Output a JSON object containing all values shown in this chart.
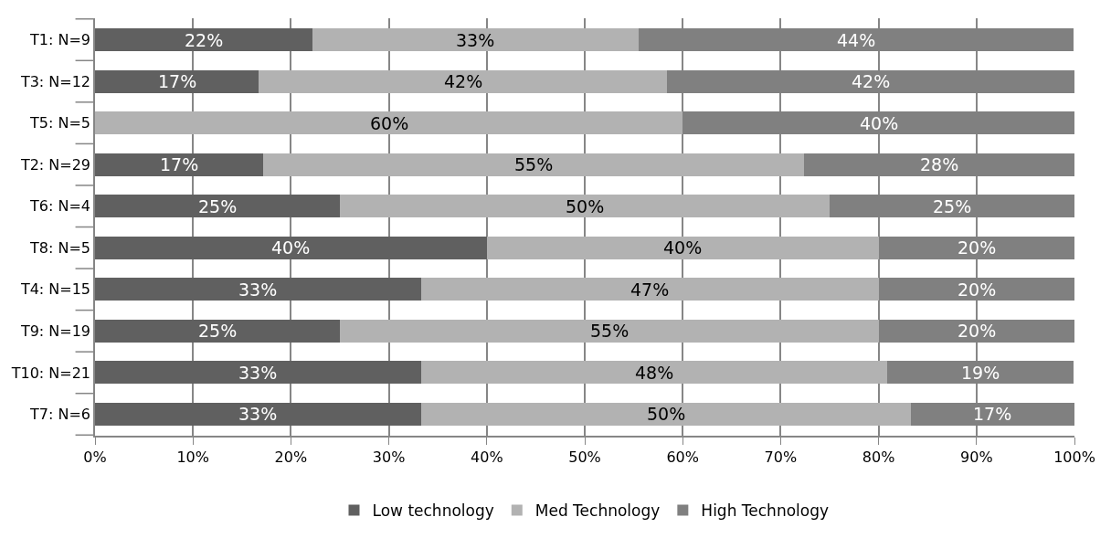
{
  "chart_data": {
    "type": "bar",
    "orientation": "horizontal",
    "stacked": true,
    "categories": [
      "T1: N=9",
      "T3: N=12",
      "T5: N=5",
      "T2: N=29",
      "T6: N=4",
      "T8: N=5",
      "T4: N=15",
      "T9: N=19",
      "T10: N=21",
      "T7: N=6"
    ],
    "series": [
      {
        "name": "Low technology",
        "color": "#606060",
        "values": [
          22.2,
          16.7,
          0,
          17.2,
          25,
          40,
          33.3,
          25,
          33.3,
          33.3
        ],
        "value_labels": [
          "22%",
          "17%",
          null,
          "17%",
          "25%",
          "40%",
          "33%",
          "25%",
          "33%",
          "33%"
        ]
      },
      {
        "name": "Med Technology",
        "color": "#b2b2b2",
        "values": [
          33.3,
          41.7,
          60,
          55.2,
          50,
          40,
          46.7,
          55,
          47.6,
          50
        ],
        "value_labels": [
          "33%",
          "42%",
          "60%",
          "55%",
          "50%",
          "40%",
          "47%",
          "55%",
          "48%",
          "50%"
        ]
      },
      {
        "name": "High Technology",
        "color": "#808080",
        "values": [
          44.4,
          41.6,
          40,
          27.6,
          25,
          20,
          20,
          20,
          19.0,
          16.7
        ],
        "value_labels": [
          "44%",
          "42%",
          "40%",
          "28%",
          "25%",
          "20%",
          "20%",
          "20%",
          "19%",
          "17%"
        ]
      }
    ],
    "xlim": [
      0,
      100
    ],
    "xticks": [
      {
        "value": 0,
        "label": "0%"
      },
      {
        "value": 10,
        "label": "10%"
      },
      {
        "value": 20,
        "label": "20%"
      },
      {
        "value": 30,
        "label": "30%"
      },
      {
        "value": 40,
        "label": "40%"
      },
      {
        "value": 50,
        "label": "50%"
      },
      {
        "value": 60,
        "label": "60%"
      },
      {
        "value": 70,
        "label": "70%"
      },
      {
        "value": 80,
        "label": "80%"
      },
      {
        "value": 90,
        "label": "90%"
      },
      {
        "value": 100,
        "label": "100%"
      }
    ],
    "grid": "x",
    "legend": "bottom"
  }
}
